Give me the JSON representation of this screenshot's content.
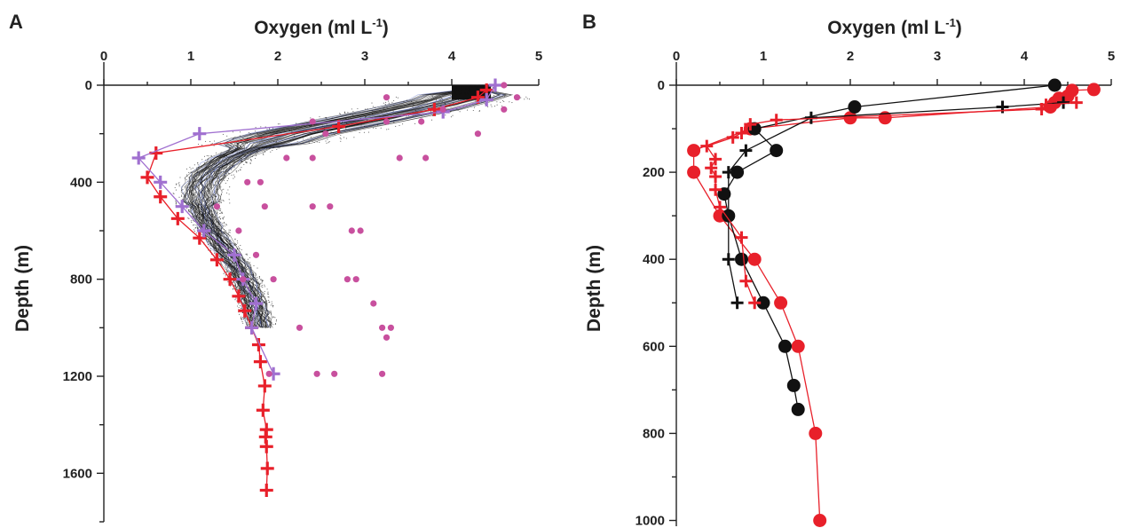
{
  "chart_data": [
    {
      "type": "scatter",
      "panel_label": "A",
      "title": "",
      "xlabel": "Oxygen (ml L",
      "xlabel_superscript": "-1",
      "xlabel_suffix": ")",
      "ylabel": "Depth (m)",
      "x_axis_position": "top",
      "y_reversed": true,
      "xlim": [
        0,
        5
      ],
      "ylim": [
        0,
        1800
      ],
      "xticks": [
        "0",
        "1",
        "2",
        "3",
        "4",
        "5"
      ],
      "yticks": [
        "0",
        "400",
        "800",
        "1200",
        "1600"
      ],
      "ytick_values": [
        0,
        400,
        800,
        1200,
        1600
      ],
      "grid": false,
      "legend": "none",
      "colors": {
        "red": "#e8202a",
        "violet": "#a070d0",
        "pink": "#c8509e",
        "blue": "#4a5fc0",
        "black": "#111111"
      },
      "cloud_center": {
        "depth": [
          0,
          50,
          100,
          150,
          200,
          250,
          300,
          350,
          400,
          450,
          500,
          550,
          600,
          650,
          700,
          750,
          800,
          850,
          900,
          950,
          1000
        ],
        "oxygen": [
          4.3,
          4.15,
          3.6,
          2.9,
          2.2,
          1.75,
          1.45,
          1.25,
          1.15,
          1.12,
          1.13,
          1.18,
          1.25,
          1.35,
          1.45,
          1.55,
          1.62,
          1.68,
          1.73,
          1.77,
          1.8
        ]
      },
      "series": [
        {
          "name": "",
          "marker": "plus",
          "color": "#e8202a",
          "line": true,
          "points": [
            [
              4.4,
              20
            ],
            [
              4.3,
              50
            ],
            [
              3.8,
              100
            ],
            [
              2.7,
              170
            ],
            [
              0.6,
              280
            ],
            [
              0.5,
              380
            ],
            [
              0.65,
              460
            ],
            [
              0.85,
              550
            ],
            [
              1.1,
              630
            ],
            [
              1.3,
              720
            ],
            [
              1.45,
              800
            ],
            [
              1.55,
              870
            ],
            [
              1.62,
              930
            ],
            [
              1.7,
              1000
            ],
            [
              1.78,
              1070
            ],
            [
              1.8,
              1140
            ],
            [
              1.85,
              1240
            ],
            [
              1.83,
              1340
            ],
            [
              1.87,
              1420
            ],
            [
              1.86,
              1450
            ],
            [
              1.87,
              1490
            ],
            [
              1.88,
              1580
            ],
            [
              1.87,
              1670
            ]
          ]
        },
        {
          "name": "",
          "marker": "plus",
          "color": "#a070d0",
          "line": true,
          "points": [
            [
              4.5,
              0
            ],
            [
              4.4,
              60
            ],
            [
              3.9,
              110
            ],
            [
              1.1,
              200
            ],
            [
              0.4,
              300
            ],
            [
              0.65,
              400
            ],
            [
              0.9,
              500
            ],
            [
              1.15,
              600
            ],
            [
              1.5,
              700
            ],
            [
              1.6,
              800
            ],
            [
              1.75,
              900
            ],
            [
              1.7,
              1000
            ],
            [
              1.95,
              1190
            ]
          ]
        },
        {
          "name": "",
          "marker": "dot",
          "color": "#c8509e",
          "line": false,
          "points": [
            [
              4.6,
              0
            ],
            [
              4.75,
              50
            ],
            [
              3.25,
              50
            ],
            [
              4.6,
              100
            ],
            [
              3.9,
              100
            ],
            [
              3.25,
              150
            ],
            [
              2.4,
              150
            ],
            [
              3.65,
              150
            ],
            [
              4.3,
              200
            ],
            [
              2.55,
              200
            ],
            [
              2.4,
              300
            ],
            [
              3.7,
              300
            ],
            [
              2.1,
              300
            ],
            [
              3.4,
              300
            ],
            [
              1.65,
              400
            ],
            [
              1.8,
              400
            ],
            [
              2.6,
              500
            ],
            [
              1.3,
              500
            ],
            [
              1.85,
              500
            ],
            [
              2.4,
              500
            ],
            [
              2.85,
              600
            ],
            [
              2.95,
              600
            ],
            [
              1.55,
              600
            ],
            [
              1.75,
              700
            ],
            [
              2.8,
              800
            ],
            [
              2.9,
              800
            ],
            [
              1.6,
              800
            ],
            [
              1.95,
              800
            ],
            [
              3.1,
              900
            ],
            [
              2.25,
              1000
            ],
            [
              3.2,
              1000
            ],
            [
              3.3,
              1000
            ],
            [
              3.25,
              1040
            ],
            [
              2.45,
              1190
            ],
            [
              2.65,
              1190
            ],
            [
              3.2,
              1190
            ],
            [
              1.9,
              1190
            ]
          ]
        }
      ]
    },
    {
      "type": "line",
      "panel_label": "B",
      "title": "",
      "xlabel": "Oxygen (ml L",
      "xlabel_superscript": "-1",
      "xlabel_suffix": ")",
      "ylabel": "Depth (m)",
      "x_axis_position": "top",
      "y_reversed": true,
      "xlim": [
        0,
        5
      ],
      "ylim": [
        0,
        1000
      ],
      "xticks": [
        "0",
        "1",
        "2",
        "3",
        "4",
        "5"
      ],
      "yticks": [
        "0",
        "200",
        "400",
        "600",
        "800",
        "1000"
      ],
      "ytick_values": [
        0,
        200,
        400,
        600,
        800,
        1000
      ],
      "grid": false,
      "legend": "none",
      "series": [
        {
          "name": "",
          "marker": "dot",
          "color": "#e8202a",
          "line": true,
          "points": [
            [
              4.8,
              10
            ],
            [
              4.55,
              12
            ],
            [
              4.5,
              25
            ],
            [
              4.4,
              30
            ],
            [
              4.35,
              40
            ],
            [
              4.3,
              50
            ],
            [
              2.4,
              75
            ],
            [
              2.0,
              75
            ],
            [
              0.85,
              100
            ],
            [
              0.2,
              150
            ],
            [
              0.2,
              200
            ],
            [
              0.5,
              300
            ],
            [
              0.9,
              400
            ],
            [
              1.2,
              500
            ],
            [
              1.4,
              600
            ],
            [
              1.6,
              800
            ],
            [
              1.65,
              1000
            ]
          ]
        },
        {
          "name": "",
          "marker": "dot",
          "color": "#111111",
          "line": true,
          "points": [
            [
              4.35,
              0
            ],
            [
              2.05,
              50
            ],
            [
              0.9,
              100
            ],
            [
              1.15,
              150
            ],
            [
              0.7,
              200
            ],
            [
              0.55,
              250
            ],
            [
              0.6,
              300
            ],
            [
              0.75,
              400
            ],
            [
              1.0,
              500
            ],
            [
              1.25,
              600
            ],
            [
              1.35,
              690
            ],
            [
              1.4,
              745
            ]
          ]
        },
        {
          "name": "",
          "marker": "plus",
          "color": "#111111",
          "line": true,
          "points": [
            [
              4.45,
              40
            ],
            [
              3.75,
              50
            ],
            [
              1.55,
              75
            ],
            [
              0.8,
              150
            ],
            [
              0.6,
              200
            ],
            [
              0.6,
              400
            ],
            [
              0.7,
              500
            ]
          ]
        },
        {
          "name": "",
          "marker": "plus",
          "color": "#e8202a",
          "line": true,
          "points": [
            [
              4.6,
              40
            ],
            [
              4.25,
              45
            ],
            [
              4.2,
              55
            ],
            [
              1.15,
              80
            ],
            [
              0.85,
              90
            ],
            [
              0.75,
              110
            ],
            [
              0.65,
              120
            ],
            [
              0.35,
              140
            ],
            [
              0.45,
              170
            ],
            [
              0.4,
              190
            ],
            [
              0.45,
              210
            ],
            [
              0.45,
              240
            ],
            [
              0.5,
              280
            ],
            [
              0.75,
              350
            ],
            [
              0.8,
              450
            ],
            [
              0.9,
              500
            ]
          ]
        }
      ]
    }
  ]
}
